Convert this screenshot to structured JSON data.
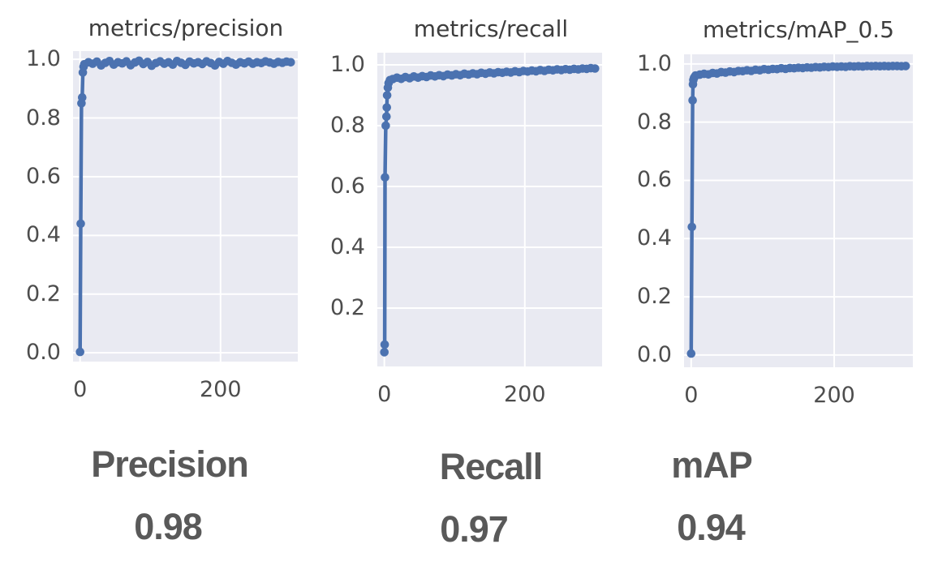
{
  "colors": {
    "line": "#4b72b0",
    "plot_background": "#e9eaf2",
    "grid": "#ffffff",
    "title_text": "#3d3d3d",
    "tick_text": "#4d4d4d",
    "summary_text": "#595959",
    "page_background": "#ffffff"
  },
  "chart_data": [
    {
      "type": "line",
      "title": "metrics/precision",
      "xlabel": "",
      "ylabel": "",
      "xlim": [
        -10,
        310
      ],
      "ylim": [
        -0.03,
        1.028
      ],
      "xticks": [
        0,
        200
      ],
      "yticks": [
        0.0,
        0.2,
        0.4,
        0.6,
        0.8,
        1.0
      ],
      "grid": true,
      "marker": "point",
      "color": "#4b72b0",
      "x": [
        0,
        1,
        2,
        3,
        4,
        5,
        6,
        12,
        18,
        24,
        30,
        36,
        42,
        48,
        54,
        60,
        66,
        72,
        78,
        84,
        90,
        96,
        102,
        108,
        114,
        120,
        126,
        132,
        138,
        144,
        150,
        156,
        162,
        168,
        174,
        180,
        186,
        192,
        198,
        204,
        210,
        216,
        222,
        228,
        234,
        240,
        246,
        252,
        258,
        264,
        270,
        276,
        282,
        288,
        294,
        300
      ],
      "y": [
        0.003,
        0.44,
        0.85,
        0.87,
        0.955,
        0.975,
        0.983,
        0.99,
        0.985,
        0.992,
        0.979,
        0.988,
        0.994,
        0.982,
        0.99,
        0.986,
        0.993,
        0.98,
        0.989,
        0.995,
        0.984,
        0.991,
        0.978,
        0.987,
        0.993,
        0.985,
        0.99,
        0.982,
        0.994,
        0.988,
        0.981,
        0.992,
        0.986,
        0.99,
        0.984,
        0.993,
        0.987,
        0.979,
        0.991,
        0.985,
        0.994,
        0.988,
        0.982,
        0.99,
        0.986,
        0.992,
        0.985,
        0.99,
        0.987,
        0.993,
        0.989,
        0.985,
        0.991,
        0.988,
        0.992,
        0.99
      ],
      "summary": {
        "label": "Precision",
        "value": "0.98"
      }
    },
    {
      "type": "line",
      "title": "metrics/recall",
      "xlabel": "",
      "ylabel": "",
      "xlim": [
        -10,
        310
      ],
      "ylim": [
        0.008,
        1.04
      ],
      "xticks": [
        0,
        200
      ],
      "yticks": [
        0.2,
        0.4,
        0.6,
        0.8,
        1.0
      ],
      "grid": true,
      "marker": "point",
      "color": "#4b72b0",
      "x": [
        0,
        0.5,
        1,
        2,
        3,
        3.5,
        4,
        5,
        6,
        8,
        12,
        18,
        24,
        30,
        36,
        42,
        48,
        54,
        60,
        66,
        72,
        78,
        84,
        90,
        96,
        102,
        108,
        114,
        120,
        126,
        132,
        138,
        144,
        150,
        156,
        162,
        168,
        174,
        180,
        186,
        192,
        198,
        204,
        210,
        216,
        222,
        228,
        234,
        240,
        246,
        252,
        258,
        264,
        270,
        276,
        282,
        288,
        294,
        300
      ],
      "y": [
        0.055,
        0.08,
        0.63,
        0.8,
        0.83,
        0.86,
        0.9,
        0.925,
        0.94,
        0.95,
        0.953,
        0.958,
        0.954,
        0.96,
        0.956,
        0.962,
        0.958,
        0.963,
        0.96,
        0.965,
        0.962,
        0.966,
        0.963,
        0.968,
        0.965,
        0.969,
        0.966,
        0.971,
        0.968,
        0.972,
        0.969,
        0.974,
        0.971,
        0.975,
        0.972,
        0.976,
        0.974,
        0.977,
        0.975,
        0.979,
        0.976,
        0.98,
        0.978,
        0.981,
        0.979,
        0.983,
        0.98,
        0.984,
        0.982,
        0.985,
        0.983,
        0.986,
        0.984,
        0.987,
        0.985,
        0.988,
        0.987,
        0.989,
        0.988
      ],
      "summary": {
        "label": "Recall",
        "value": "0.97"
      }
    },
    {
      "type": "line",
      "title": "metrics/mAP_0.5",
      "xlabel": "",
      "ylabel": "",
      "xlim": [
        -10,
        310
      ],
      "ylim": [
        -0.042,
        1.033
      ],
      "xticks": [
        0,
        200
      ],
      "yticks": [
        0.0,
        0.2,
        0.4,
        0.6,
        0.8,
        1.0
      ],
      "grid": true,
      "marker": "point",
      "color": "#4b72b0",
      "x": [
        0,
        1,
        2,
        2.5,
        3,
        4,
        5,
        6,
        12,
        18,
        24,
        30,
        36,
        42,
        48,
        54,
        60,
        66,
        72,
        78,
        84,
        90,
        96,
        102,
        108,
        114,
        120,
        126,
        132,
        138,
        144,
        150,
        156,
        162,
        168,
        174,
        180,
        186,
        192,
        198,
        204,
        210,
        216,
        222,
        228,
        234,
        240,
        246,
        252,
        258,
        264,
        270,
        276,
        282,
        288,
        294,
        300
      ],
      "y": [
        0.005,
        0.44,
        0.875,
        0.93,
        0.945,
        0.952,
        0.956,
        0.96,
        0.963,
        0.966,
        0.964,
        0.969,
        0.967,
        0.972,
        0.97,
        0.974,
        0.972,
        0.976,
        0.975,
        0.978,
        0.976,
        0.98,
        0.978,
        0.982,
        0.98,
        0.983,
        0.982,
        0.985,
        0.983,
        0.986,
        0.985,
        0.987,
        0.986,
        0.988,
        0.987,
        0.989,
        0.988,
        0.99,
        0.989,
        0.991,
        0.99,
        0.991,
        0.99,
        0.992,
        0.991,
        0.992,
        0.991,
        0.993,
        0.992,
        0.993,
        0.992,
        0.993,
        0.992,
        0.993,
        0.993,
        0.992,
        0.993
      ],
      "summary": {
        "label": "mAP",
        "value": "0.94"
      }
    }
  ]
}
